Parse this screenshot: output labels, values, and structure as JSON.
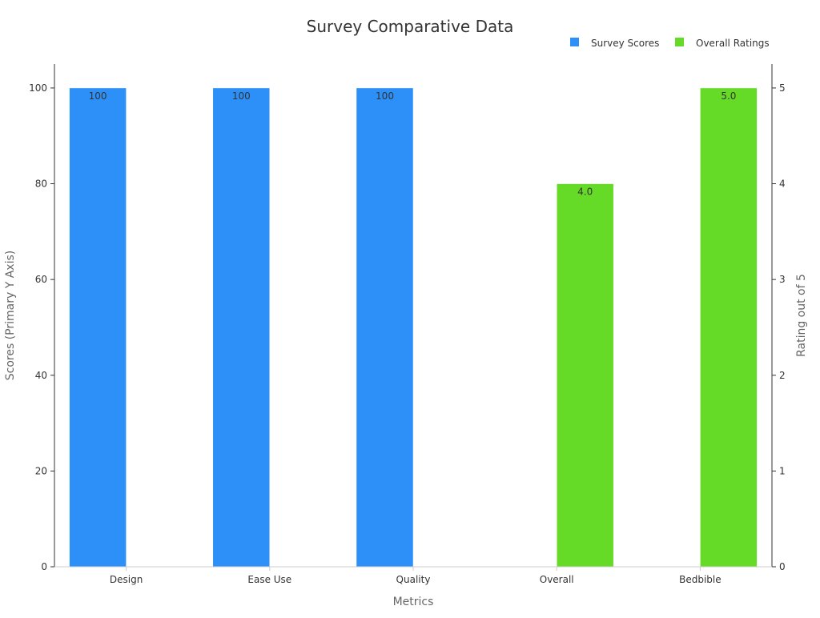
{
  "chart_data": {
    "type": "bar",
    "title": "Survey Comparative Data",
    "xlabel": "Metrics",
    "ylabel": "Scores (Primary Y Axis)",
    "y2label": "Rating out of 5",
    "categories": [
      "Design",
      "Ease Use",
      "Quality",
      "Overall",
      "Bedbible"
    ],
    "ylim": [
      0,
      105
    ],
    "y2lim": [
      0,
      5.25
    ],
    "yticks": [
      0,
      20,
      40,
      60,
      80,
      100
    ],
    "y2ticks": [
      0,
      1,
      2,
      3,
      4,
      5
    ],
    "grid": false,
    "legend_position": "top-right",
    "series": [
      {
        "name": "Survey Scores",
        "axis": "left",
        "color": "#2d8ff8",
        "values": [
          100,
          100,
          100,
          null,
          null
        ],
        "labels": [
          "100",
          "100",
          "100",
          null,
          null
        ]
      },
      {
        "name": "Overall Ratings",
        "axis": "right",
        "color": "#66db27",
        "values": [
          null,
          null,
          null,
          4.0,
          5.0
        ],
        "labels": [
          null,
          null,
          null,
          "4.0",
          "5.0"
        ]
      }
    ]
  }
}
